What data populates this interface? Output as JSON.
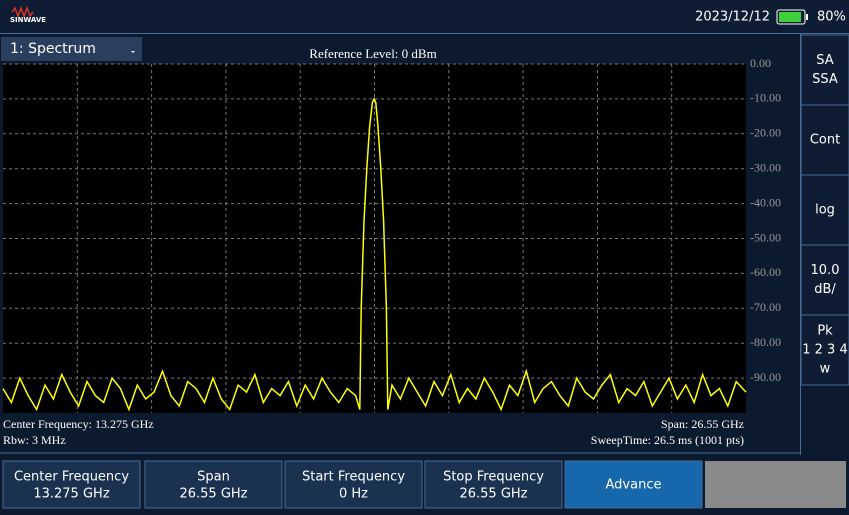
{
  "header": {
    "logo": "SINWAVE",
    "date": "2023/12/12",
    "battery": "80%"
  },
  "toolbar": {
    "trace_select": "1: Spectrum",
    "reference_level": "Reference Level: 0 dBm"
  },
  "chart_data": {
    "type": "line",
    "xlim": [
      0,
      26.55
    ],
    "ylim": [
      -100,
      0
    ],
    "yticks": [
      {
        "value": 0,
        "label": "0.00"
      },
      {
        "value": -10,
        "label": "-10.00"
      },
      {
        "value": -20,
        "label": "-20.00"
      },
      {
        "value": -30,
        "label": "-30.00"
      },
      {
        "value": -40,
        "label": "-40.00"
      },
      {
        "value": -50,
        "label": "-50.00"
      },
      {
        "value": -60,
        "label": "-60.00"
      },
      {
        "value": -70,
        "label": "-70.00"
      },
      {
        "value": -80,
        "label": "-80.00"
      },
      {
        "value": -90,
        "label": "-90.00"
      }
    ],
    "grid": true,
    "x_divisions": 10,
    "x": [
      0,
      0.3,
      0.6,
      0.9,
      1.2,
      1.5,
      1.8,
      2.1,
      2.4,
      2.7,
      3,
      3.3,
      3.6,
      3.9,
      4.2,
      4.5,
      4.8,
      5.1,
      5.4,
      5.7,
      6,
      6.3,
      6.6,
      6.9,
      7.2,
      7.5,
      7.8,
      8.1,
      8.4,
      8.7,
      9,
      9.3,
      9.6,
      9.9,
      10.2,
      10.5,
      10.8,
      11.1,
      11.4,
      11.7,
      12,
      12.3,
      12.6,
      12.75,
      12.8,
      12.9,
      13,
      13.1,
      13.2,
      13.26,
      13.32,
      13.4,
      13.5,
      13.6,
      13.7,
      13.75,
      13.9,
      14.2,
      14.5,
      14.8,
      15.1,
      15.4,
      15.7,
      16,
      16.3,
      16.6,
      16.9,
      17.2,
      17.5,
      17.8,
      18.1,
      18.4,
      18.7,
      19,
      19.3,
      19.6,
      19.9,
      20.2,
      20.5,
      20.8,
      21.1,
      21.4,
      21.7,
      22,
      22.3,
      22.6,
      22.9,
      23.2,
      23.5,
      23.8,
      24.1,
      24.4,
      24.7,
      25,
      25.3,
      25.6,
      25.9,
      26.2,
      26.55
    ],
    "series": [
      {
        "color": "#ffff00",
        "values": [
          -93,
          -97,
          -90,
          -95,
          -99,
          -92,
          -96,
          -89,
          -94,
          -98,
          -91,
          -95,
          -97,
          -90,
          -93,
          -99,
          -92,
          -96,
          -94,
          -88,
          -95,
          -98,
          -91,
          -93,
          -97,
          -90,
          -96,
          -99,
          -92,
          -94,
          -89,
          -97,
          -93,
          -95,
          -91,
          -98,
          -92,
          -96,
          -90,
          -94,
          -97,
          -93,
          -95,
          -99,
          -70,
          -45,
          -30,
          -18,
          -11,
          -10,
          -11,
          -18,
          -30,
          -45,
          -70,
          -99,
          -92,
          -96,
          -90,
          -94,
          -98,
          -91,
          -95,
          -89,
          -97,
          -93,
          -96,
          -90,
          -94,
          -99,
          -92,
          -95,
          -88,
          -97,
          -93,
          -91,
          -95,
          -98,
          -90,
          -94,
          -96,
          -92,
          -89,
          -97,
          -93,
          -95,
          -91,
          -98,
          -94,
          -90,
          -96,
          -92,
          -97,
          -89,
          -95,
          -93,
          -98,
          -91,
          -94
        ]
      }
    ]
  },
  "info": {
    "center": "Center Frequency: 13.275 GHz",
    "rbw": "Rbw: 3 MHz",
    "span": "Span: 26.55 GHz",
    "sweep": "SweepTime: 26.5 ms (1001 pts)"
  },
  "side_menu": [
    [
      "SA",
      "SSA"
    ],
    [
      "Cont"
    ],
    [
      "log"
    ],
    [
      "10.0",
      "dB/"
    ],
    [
      "Pk",
      "1 2 3 4",
      "w"
    ]
  ],
  "soft_keys": [
    {
      "label": "Center Frequency",
      "value": "13.275 GHz"
    },
    {
      "label": "Span",
      "value": "26.55 GHz"
    },
    {
      "label": "Start Frequency",
      "value": "0 Hz"
    },
    {
      "label": "Stop Frequency",
      "value": "26.55 GHz"
    },
    {
      "label": "Advance"
    }
  ]
}
